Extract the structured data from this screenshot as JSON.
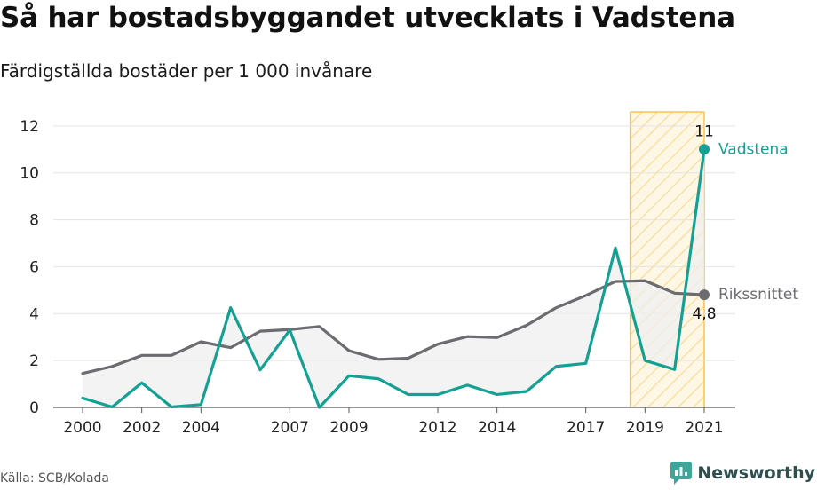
{
  "header": {
    "title": "Så har bostadsbyggandet utvecklats i Vadstena",
    "subtitle": "Färdigställda bostäder per 1 000 invånare"
  },
  "footer": {
    "source": "Källa: SCB/Kolada",
    "brand": "Newsworthy"
  },
  "chart_data": {
    "type": "line",
    "x": [
      2000,
      2001,
      2002,
      2003,
      2004,
      2005,
      2006,
      2007,
      2008,
      2009,
      2010,
      2011,
      2012,
      2013,
      2014,
      2015,
      2016,
      2017,
      2018,
      2019,
      2020,
      2021
    ],
    "x_tick_labels": [
      2000,
      2002,
      2004,
      2007,
      2009,
      2012,
      2014,
      2017,
      2019,
      2021
    ],
    "ylim": [
      0,
      12.6
    ],
    "y_ticks": [
      0,
      2,
      4,
      6,
      8,
      10,
      12
    ],
    "grid": "horizontal",
    "highlight_range": [
      2018.5,
      2021
    ],
    "series": [
      {
        "name": "Vadstena",
        "color": "#14a092",
        "values": [
          0.4,
          0.02,
          1.05,
          0.02,
          0.12,
          4.25,
          1.6,
          3.3,
          0.0,
          1.35,
          1.22,
          0.55,
          0.55,
          0.95,
          0.55,
          0.68,
          1.75,
          1.88,
          6.8,
          2.0,
          1.62,
          11.0
        ],
        "end_label": "11"
      },
      {
        "name": "Rikssnittet",
        "color": "#6b6b70",
        "values": [
          1.45,
          1.75,
          2.22,
          2.22,
          2.8,
          2.55,
          3.25,
          3.32,
          3.45,
          2.42,
          2.05,
          2.1,
          2.7,
          3.02,
          2.98,
          3.5,
          4.25,
          4.77,
          5.37,
          5.4,
          4.87,
          4.8
        ],
        "end_label": "4,8"
      }
    ],
    "colors": {
      "highlight_fill": "#fde9b8",
      "highlight_stroke": "#f5c451",
      "area_fill": "#efefef",
      "grid": "#e3e3e3",
      "axis": "#555555"
    }
  }
}
